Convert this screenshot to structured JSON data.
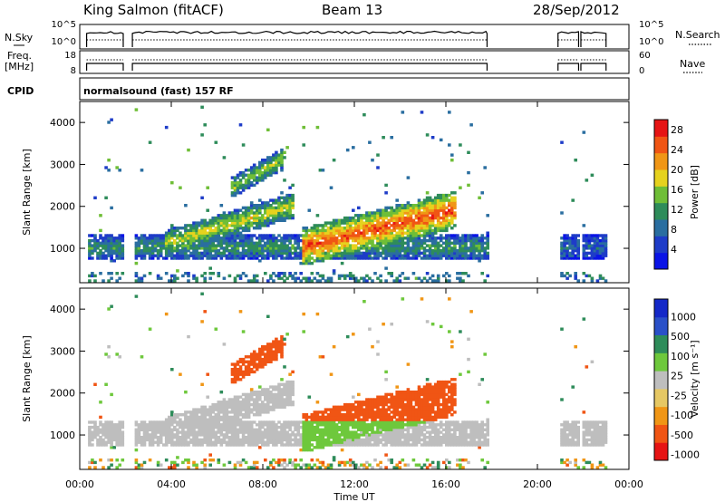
{
  "header": {
    "station": "King Salmon (fitACF)",
    "beam": "Beam 13",
    "date": "28/Sep/2012"
  },
  "noise_panel": {
    "left_label": "N.Sky",
    "left_ticks": [
      "10^5",
      "10^0"
    ],
    "right_label": "N.Search",
    "right_ticks": [
      "10^5",
      "10^0"
    ]
  },
  "freq_panel": {
    "left_label_line1": "Freq.",
    "left_label_line2": "[MHz]",
    "left_ticks": [
      "18",
      "8"
    ],
    "right_label": "Nave",
    "right_ticks": [
      "60",
      "0"
    ]
  },
  "cpid_panel": {
    "label": "CPID",
    "mode_text": "normalsound (fast) 157 RF"
  },
  "colors": {
    "power_scale": [
      "#0a14e6",
      "#1e3cc8",
      "#2a6ea0",
      "#2e8c5a",
      "#6fbe37",
      "#e6d21e",
      "#f09616",
      "#f05514",
      "#e61414"
    ],
    "velocity_scale": [
      "#e61414",
      "#f05514",
      "#f09616",
      "#e6c864",
      "#bebebe",
      "#6ec83c",
      "#2e8c5a",
      "#2a50c8",
      "#1428c8"
    ],
    "ground_scatter": "#bebebe"
  },
  "chart_data": [
    {
      "type": "heatmap",
      "title": "Power",
      "ylabel": "Slant Range [km]",
      "xlabel": "",
      "xlim": [
        0,
        24
      ],
      "ylim": [
        180,
        4500
      ],
      "yticks": [
        "1000",
        "2000",
        "3000",
        "4000"
      ],
      "colorbar": {
        "label": "Power [dB]",
        "ticks": [
          "28",
          "24",
          "20",
          "16",
          "12",
          "8",
          "4"
        ],
        "range": [
          0,
          30
        ]
      },
      "data_gaps_ut": [
        [
          1.9,
          2.3
        ],
        [
          17.8,
          20.9
        ],
        [
          21.8,
          21.9
        ]
      ],
      "features": [
        {
          "name": "main band",
          "ut_start": 0.3,
          "ut_end": 17.8,
          "range_km_start": 1000,
          "range_km_end": 1000,
          "power_db": 12
        },
        {
          "name": "rising band",
          "ut_start": 3.7,
          "ut_end": 9.3,
          "range_km_start": 1100,
          "range_km_end": 2000,
          "power_db": 18
        },
        {
          "name": "upper arc",
          "ut_start": 6.5,
          "ut_end": 8.8,
          "range_km_start": 2400,
          "range_km_end": 3100,
          "power_db": 16
        },
        {
          "name": "strong patch",
          "ut_start": 9.6,
          "ut_end": 16.4,
          "range_km_start": 1000,
          "range_km_end": 1900,
          "power_db": 26
        },
        {
          "name": "late segment",
          "ut_start": 20.9,
          "ut_end": 23.0,
          "range_km_start": 1000,
          "range_km_end": 1000,
          "power_db": 8
        }
      ]
    },
    {
      "type": "heatmap",
      "title": "Velocity",
      "ylabel": "Slant Range [km]",
      "xlabel": "Time UT",
      "xlim": [
        0,
        24
      ],
      "ylim": [
        180,
        4500
      ],
      "xticks": [
        "00:00",
        "04:00",
        "08:00",
        "12:00",
        "16:00",
        "20:00",
        "00:00"
      ],
      "yticks": [
        "1000",
        "2000",
        "3000",
        "4000"
      ],
      "colorbar": {
        "label": "Velocity [m s⁻¹]",
        "ticks": [
          "1000",
          "500",
          "100",
          "25",
          "-25",
          "-100",
          "-500",
          "-1000"
        ]
      },
      "features": [
        {
          "name": "ground scatter band",
          "ut_start": 0.3,
          "ut_end": 9.5,
          "range_km_start": 1000,
          "range_km_end": 2000,
          "velocity": 0
        },
        {
          "name": "upper arc",
          "ut_start": 6.5,
          "ut_end": 8.8,
          "range_km_start": 2400,
          "range_km_end": 3100,
          "velocity": -300
        },
        {
          "name": "approaching region",
          "ut_start": 9.6,
          "ut_end": 16.4,
          "range_km_start": 1300,
          "range_km_end": 1900,
          "velocity": -300
        },
        {
          "name": "receding region",
          "ut_start": 9.6,
          "ut_end": 16.4,
          "range_km_start": 900,
          "range_km_end": 1300,
          "velocity": 50
        },
        {
          "name": "late ground scatter",
          "ut_start": 20.9,
          "ut_end": 23.0,
          "range_km_start": 1000,
          "range_km_end": 1000,
          "velocity": 0
        }
      ]
    }
  ]
}
